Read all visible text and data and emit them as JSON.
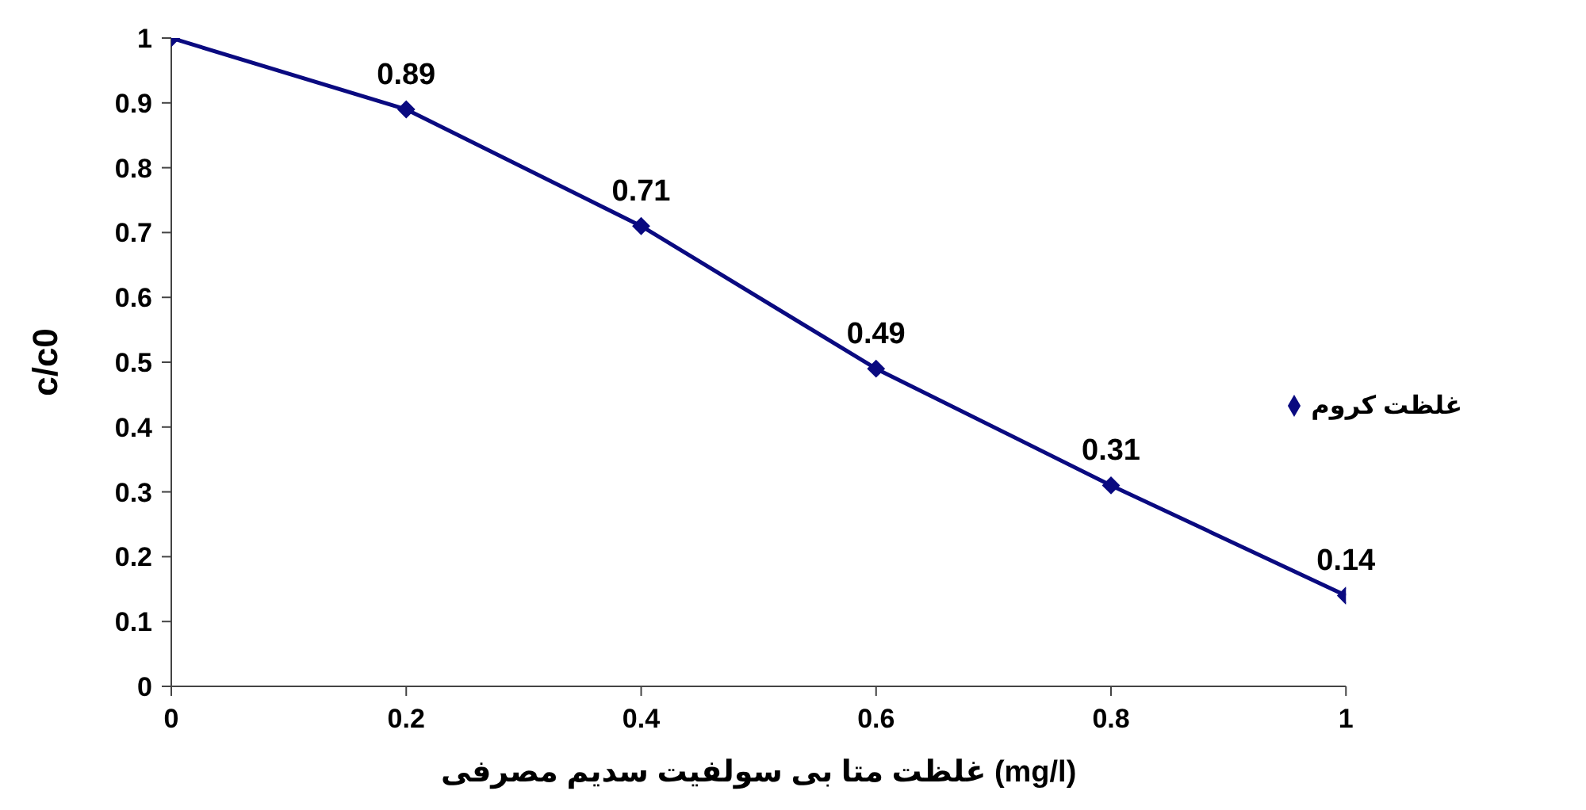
{
  "chart_data": {
    "type": "line",
    "xlabel": "غلظت متا بی سولفیت سدیم مصرفی (mg/l)",
    "ylabel": "c/c0",
    "x": [
      0,
      0.2,
      0.4,
      0.6,
      0.8,
      1
    ],
    "series": [
      {
        "name": "غلظت کروم",
        "color": "#0a0a80",
        "values": [
          1,
          0.89,
          0.71,
          0.49,
          0.31,
          0.14
        ],
        "value_labels": [
          null,
          "0.89",
          "0.71",
          "0.49",
          "0.31",
          "0.14"
        ]
      }
    ],
    "xlim": [
      0,
      1
    ],
    "xticks": [
      0,
      0.2,
      0.4,
      0.6,
      0.8,
      1
    ],
    "ylim": [
      0,
      1
    ],
    "yticks": [
      0,
      0.1,
      0.2,
      0.3,
      0.4,
      0.5,
      0.6,
      0.7,
      0.8,
      0.9,
      1
    ],
    "grid": false,
    "legend": "right",
    "marker": "diamond",
    "line_style": "solid"
  }
}
